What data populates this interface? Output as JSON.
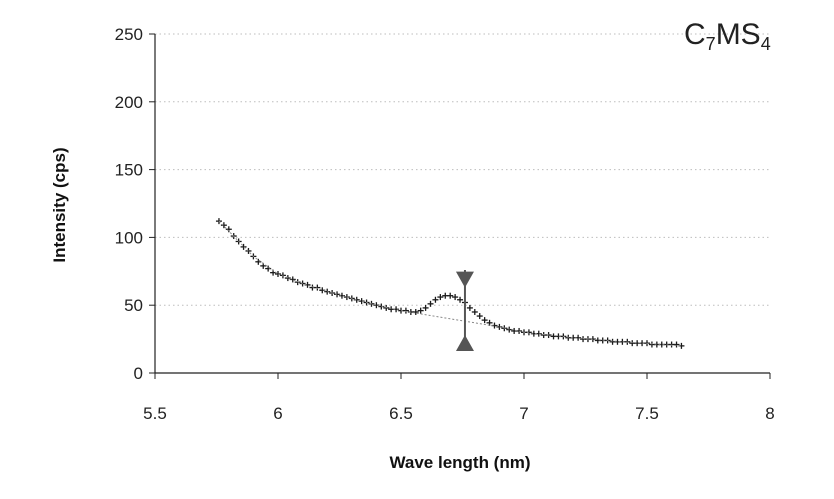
{
  "chart_data": {
    "type": "scatter",
    "title": "",
    "xlabel": "Wave length (nm)",
    "ylabel": "Intensity (cps)",
    "xlim": [
      5.5,
      8
    ],
    "ylim": [
      0,
      250
    ],
    "xticks": [
      "5.5",
      "6",
      "6.5",
      "7",
      "7.5",
      "8"
    ],
    "yticks": [
      "0",
      "50",
      "100",
      "150",
      "200",
      "250"
    ],
    "grid": "horizontal dotted",
    "legend": "none",
    "annotation": {
      "main": "C",
      "sub1": "7",
      "mid": "MS",
      "sub2": "4"
    },
    "marker_color": "#1a1a1a",
    "fit_color": "#888888",
    "series": [
      {
        "style": "points",
        "x": [
          5.76,
          5.78,
          5.8,
          5.82,
          5.84,
          5.86,
          5.88,
          5.9,
          5.92,
          5.94,
          5.96,
          5.98,
          6.0,
          6.02,
          6.04,
          6.06,
          6.08,
          6.1,
          6.12,
          6.14,
          6.16,
          6.18,
          6.2,
          6.22,
          6.24,
          6.26,
          6.28,
          6.3,
          6.32,
          6.34,
          6.36,
          6.38,
          6.4,
          6.42,
          6.44,
          6.46,
          6.48,
          6.5,
          6.52,
          6.54,
          6.56,
          6.58,
          6.6,
          6.62,
          6.64,
          6.66,
          6.68,
          6.7,
          6.72,
          6.74,
          6.76,
          6.78,
          6.8,
          6.82,
          6.84,
          6.86,
          6.88,
          6.9,
          6.92,
          6.94,
          6.96,
          6.98,
          7.0,
          7.02,
          7.04,
          7.06,
          7.08,
          7.1,
          7.12,
          7.14,
          7.16,
          7.18,
          7.2,
          7.22,
          7.24,
          7.26,
          7.28,
          7.3,
          7.32,
          7.34,
          7.36,
          7.38,
          7.4,
          7.42,
          7.44,
          7.46,
          7.48,
          7.5,
          7.52,
          7.54,
          7.56,
          7.58,
          7.6,
          7.62,
          7.64
        ],
        "y": [
          112,
          109,
          106,
          101,
          97,
          93,
          90,
          86,
          82,
          79,
          77,
          74,
          73,
          72,
          70,
          69,
          67,
          66,
          65,
          63,
          63,
          61,
          60,
          59,
          58,
          57,
          56,
          55,
          54,
          53,
          52,
          51,
          50,
          49,
          48,
          47,
          47,
          46,
          46,
          45,
          45,
          46,
          48,
          51,
          54,
          56,
          57,
          57,
          56,
          54,
          52,
          48,
          45,
          42,
          39,
          37,
          35,
          34,
          33,
          32,
          31,
          31,
          30,
          30,
          29,
          29,
          28,
          28,
          27,
          27,
          27,
          26,
          26,
          26,
          25,
          25,
          25,
          24,
          24,
          24,
          23,
          23,
          23,
          23,
          22,
          22,
          22,
          22,
          21,
          21,
          21,
          21,
          21,
          21,
          20
        ]
      },
      {
        "style": "dashed-fit",
        "x": [
          5.76,
          5.9,
          6.0,
          6.1,
          6.2,
          6.3,
          6.4,
          6.5,
          6.6,
          6.7,
          6.8,
          6.9,
          7.0,
          7.2,
          7.4,
          7.64
        ],
        "y": [
          112,
          86,
          73,
          66,
          60,
          55,
          50,
          46,
          43,
          40,
          37,
          34,
          30,
          26,
          23,
          20
        ]
      }
    ],
    "markers": [
      {
        "shape": "triangle-down",
        "x": 6.76,
        "y": 63
      },
      {
        "shape": "triangle-up",
        "x": 6.76,
        "y": 28
      }
    ],
    "marker_line": {
      "x": 6.76,
      "y0": 26,
      "y1": 76
    }
  }
}
